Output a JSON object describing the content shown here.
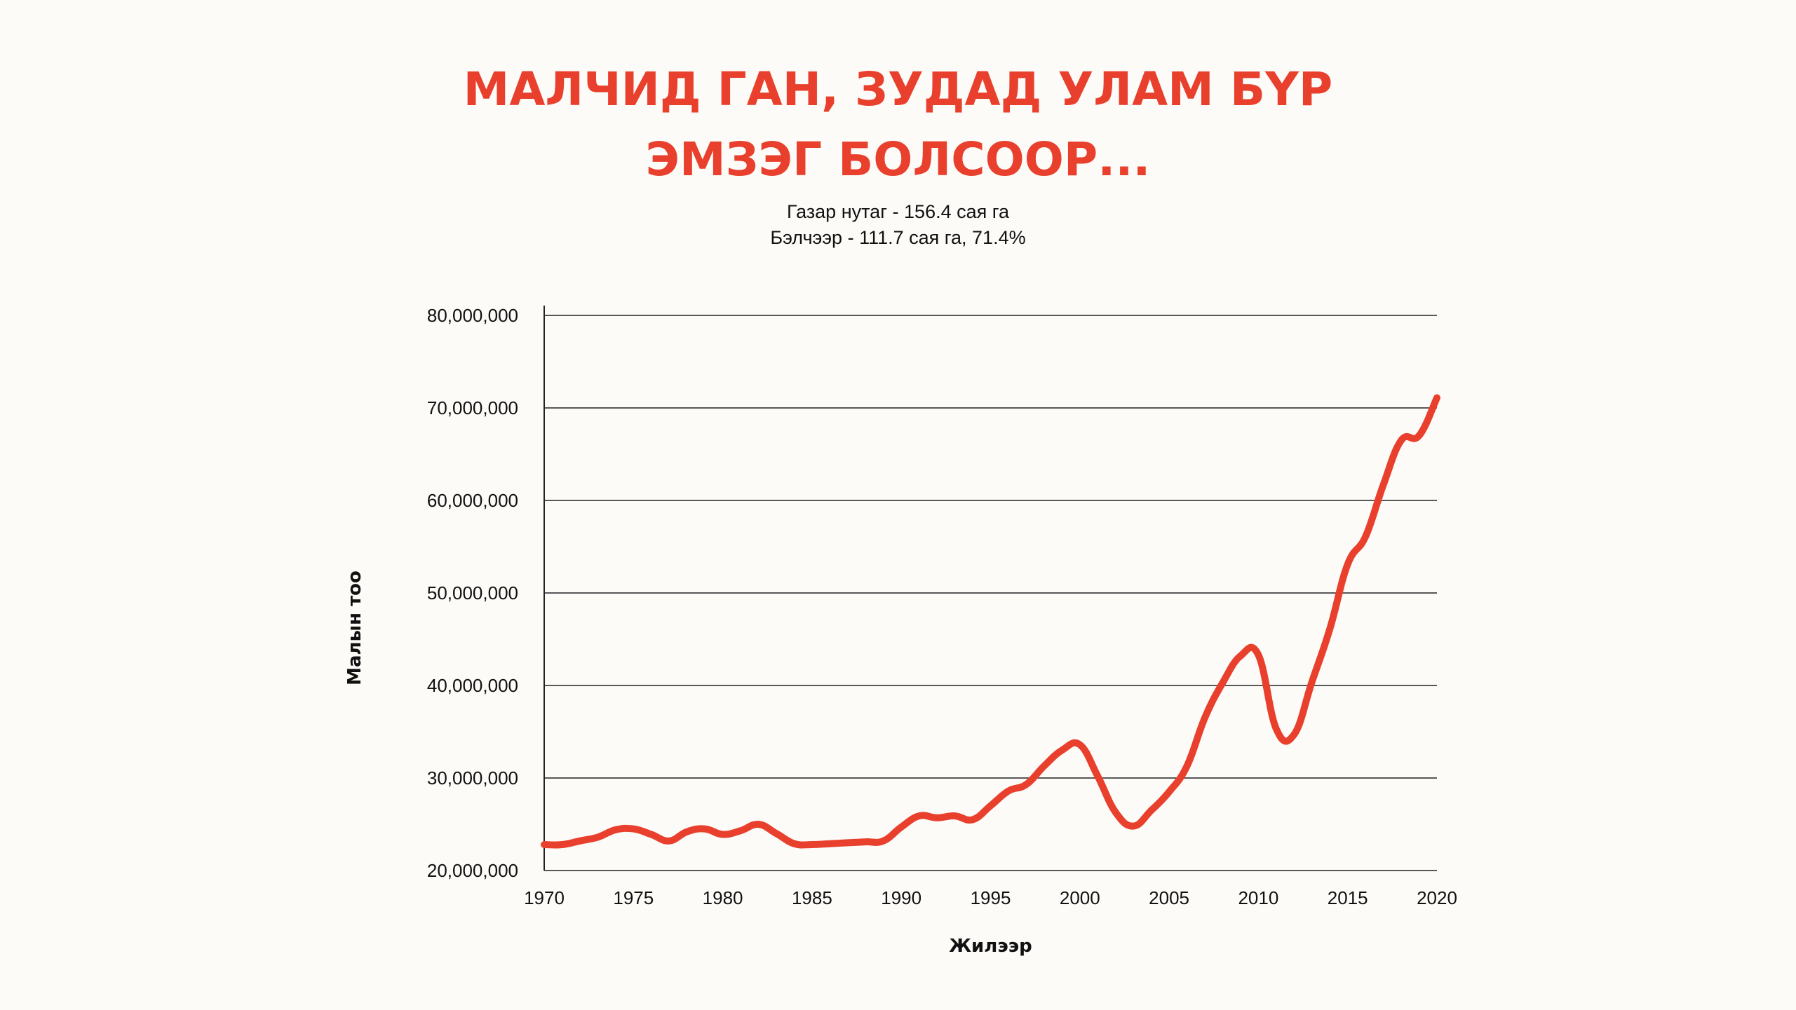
{
  "title_lines": [
    "МАЛЧИД ГАН, ЗУДАД УЛАМ БҮР",
    "ЭМЗЭГ БОЛСООР..."
  ],
  "subtitle_lines": [
    "Газар нутаг - 156.4 сая га",
    "Бэлчээр - 111.7 сая га, 71.4%"
  ],
  "colors": {
    "line": "#e8402c",
    "title": "#e8402c",
    "grid": "#222222"
  },
  "chart_data": {
    "type": "line",
    "xlabel": "Жилээр",
    "ylabel": "Малын тоо",
    "xlim": [
      1970,
      2020
    ],
    "ylim": [
      20000000,
      80000000
    ],
    "x_ticks": [
      "1970",
      "1975",
      "1980",
      "1985",
      "1990",
      "1995",
      "2000",
      "2005",
      "2010",
      "2015",
      "2020"
    ],
    "y_ticks": [
      "20,000,000",
      "30,000,000",
      "40,000,000",
      "50,000,000",
      "60,000,000",
      "70,000,000",
      "80,000,000"
    ],
    "grid": "horizontal",
    "legend": "none",
    "series": [
      {
        "x": [
          1970,
          1971,
          1972,
          1973,
          1974,
          1975,
          1976,
          1977,
          1978,
          1979,
          1980,
          1981,
          1982,
          1983,
          1984,
          1985,
          1986,
          1987,
          1988,
          1989,
          1990,
          1991,
          1992,
          1993,
          1994,
          1995,
          1996,
          1997,
          1998,
          1999,
          2000,
          2001,
          2002,
          2003,
          2004,
          2005,
          2006,
          2007,
          2008,
          2009,
          2010,
          2011,
          2012,
          2013,
          2014,
          2015,
          2016,
          2017,
          2018,
          2019,
          2020
        ],
        "values": [
          22800000,
          22800000,
          23200000,
          23600000,
          24400000,
          24500000,
          23900000,
          23200000,
          24200000,
          24500000,
          23900000,
          24300000,
          25000000,
          24000000,
          22900000,
          22800000,
          22900000,
          23000000,
          23100000,
          23200000,
          24700000,
          25900000,
          25700000,
          25900000,
          25500000,
          27000000,
          28600000,
          29300000,
          31300000,
          33000000,
          33600000,
          30200000,
          26300000,
          24800000,
          26500000,
          28500000,
          31300000,
          36500000,
          40300000,
          43200000,
          43300000,
          35300000,
          34700000,
          40400000,
          46100000,
          53100000,
          56100000,
          61700000,
          66500000,
          67000000,
          71100000
        ]
      }
    ]
  }
}
